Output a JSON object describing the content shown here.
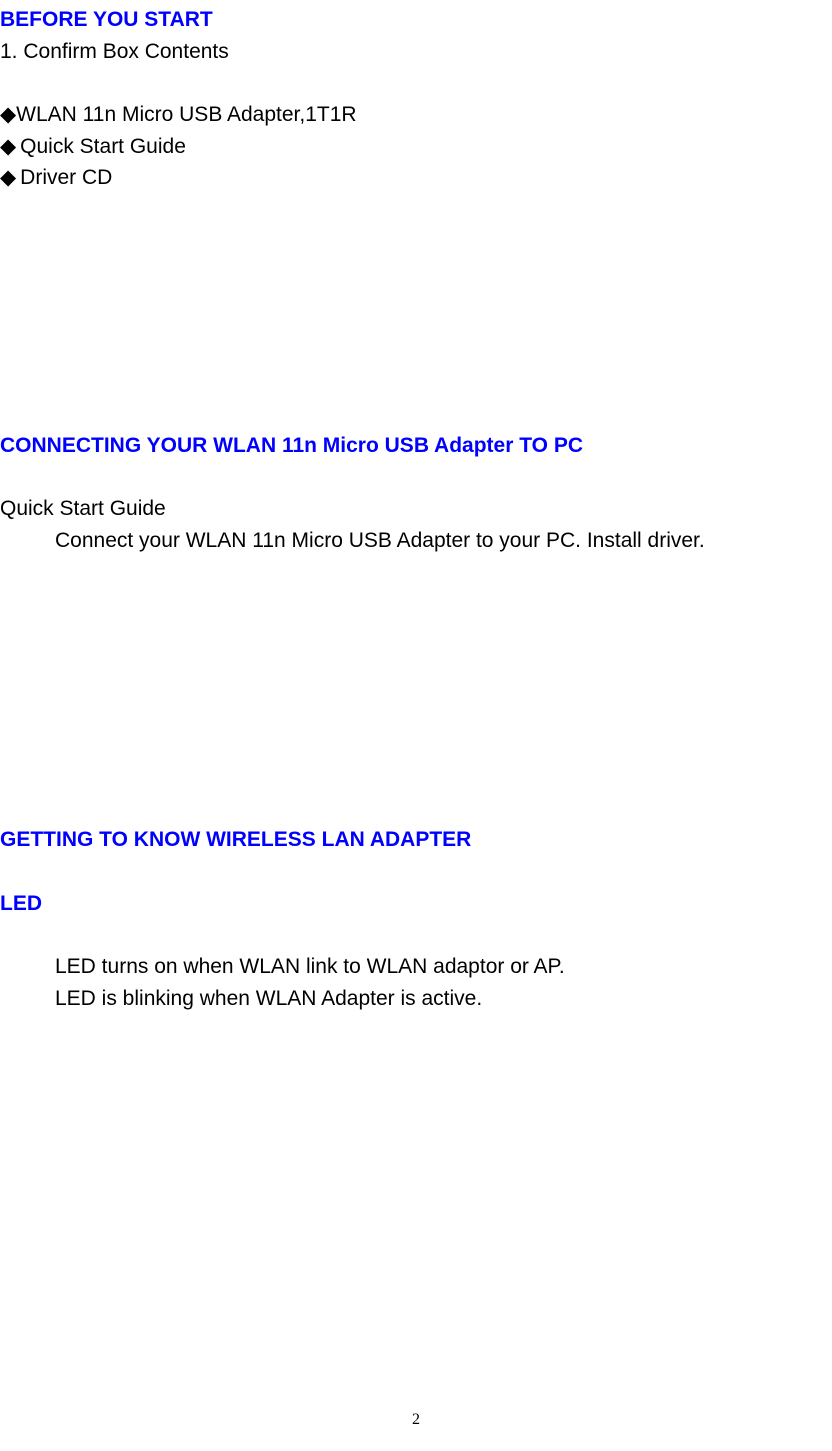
{
  "section1": {
    "heading": "BEFORE YOU START",
    "numbered": "1.    Confirm Box Contents",
    "bullets": [
      "WLAN 11n Micro USB Adapter,1T1R",
      " Quick Start Guide",
      " Driver CD"
    ]
  },
  "section2": {
    "heading": "CONNECTING YOUR WLAN 11n Micro USB Adapter TO PC",
    "sub": "Quick Start Guide",
    "body": "Connect your WLAN 11n Micro USB Adapter to your PC. Install driver."
  },
  "section3": {
    "heading": "GETTING TO KNOW WIRELESS LAN ADAPTER",
    "sub": "LED",
    "body1": "LED turns on when WLAN link to WLAN adaptor or AP.",
    "body2": "LED is blinking when WLAN Adapter is active."
  },
  "pageNumber": "2",
  "colors": {
    "headingColor": "#0000ff",
    "textColor": "#000000",
    "background": "#ffffff"
  },
  "typography": {
    "headingFontSize": 21,
    "bodyFontSize": 21,
    "pageNumberFontSize": 16
  }
}
